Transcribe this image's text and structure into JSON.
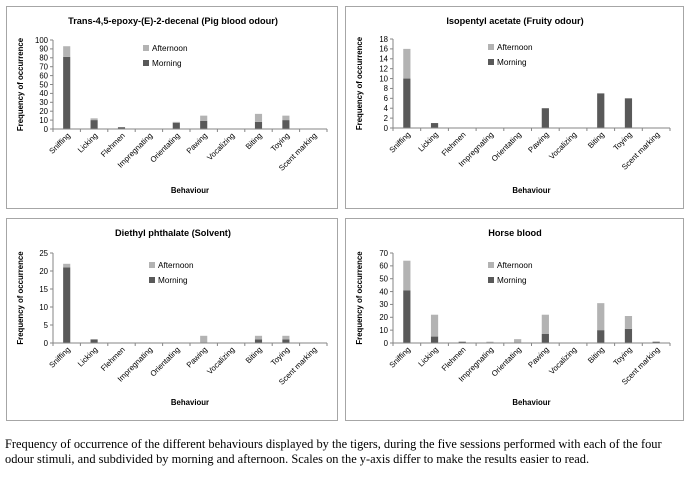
{
  "caption": "Frequency of occurrence of the different behaviours displayed by the tigers, during the five sessions performed with each of the four odour stimuli, and subdivided by morning and afternoon. Scales on the y-axis differ to make the results easier to read.",
  "colors": {
    "morning": "#595959",
    "afternoon": "#b3b3b3",
    "axis": "#868686",
    "border": "#a6a6a6",
    "text": "#000000"
  },
  "chart_data": [
    {
      "type": "bar",
      "stacked": true,
      "title": "Trans-4,5-epoxy-(E)-2-decenal (Pig blood odour)",
      "xlabel": "Behaviour",
      "ylabel": "Frequency of occurrence",
      "categories": [
        "Sniffing",
        "Licking",
        "Flehmen",
        "Impregnating",
        "Orientating",
        "Pawing",
        "Vocalizing",
        "Biting",
        "Toying",
        "Scent marking"
      ],
      "ylim": [
        0,
        100
      ],
      "yticks": [
        0,
        10,
        20,
        30,
        40,
        50,
        60,
        70,
        80,
        90,
        100
      ],
      "legend_position": "top-center",
      "series": [
        {
          "name": "Morning",
          "values": [
            81,
            10,
            2,
            0,
            7,
            9,
            0,
            8,
            10,
            0
          ]
        },
        {
          "name": "Afternoon",
          "values": [
            12,
            2,
            0,
            0,
            1,
            6,
            0,
            9,
            5,
            0
          ]
        }
      ]
    },
    {
      "type": "bar",
      "stacked": true,
      "title": "Isopentyl acetate (Fruity odour)",
      "xlabel": "Behaviour",
      "ylabel": "Frequency of occurrence",
      "categories": [
        "Sniffing",
        "Licking",
        "Flehmen",
        "Impregnating",
        "Orientating",
        "Pawing",
        "Vocalizing",
        "Biting",
        "Toying",
        "Scent marking"
      ],
      "ylim": [
        0,
        18
      ],
      "yticks": [
        0,
        2,
        4,
        6,
        8,
        10,
        12,
        14,
        16,
        18
      ],
      "legend_position": "top-center",
      "series": [
        {
          "name": "Morning",
          "values": [
            10,
            1,
            0,
            0,
            0,
            4,
            0,
            7,
            6,
            0
          ]
        },
        {
          "name": "Afternoon",
          "values": [
            6,
            0,
            0,
            0,
            0,
            0,
            0,
            0,
            0,
            0
          ]
        }
      ]
    },
    {
      "type": "bar",
      "stacked": true,
      "title": "Diethyl phthalate (Solvent)",
      "xlabel": "Behaviour",
      "ylabel": "Frequency of occurrence",
      "categories": [
        "Sniffing",
        "Licking",
        "Flehmen",
        "Impregnating",
        "Orientating",
        "Pawing",
        "Vocalizing",
        "Biting",
        "Toying",
        "Scent marking"
      ],
      "ylim": [
        0,
        25
      ],
      "yticks": [
        0,
        5,
        10,
        15,
        20,
        25
      ],
      "legend_position": "top-center",
      "series": [
        {
          "name": "Morning",
          "values": [
            21,
            1,
            0,
            0,
            0,
            0,
            0,
            1,
            1,
            0
          ]
        },
        {
          "name": "Afternoon",
          "values": [
            1,
            0,
            0,
            0,
            0,
            2,
            0,
            1,
            1,
            0
          ]
        }
      ]
    },
    {
      "type": "bar",
      "stacked": true,
      "title": "Horse blood",
      "xlabel": "Behaviour",
      "ylabel": "Frequency of occurrence",
      "categories": [
        "Sniffing",
        "Licking",
        "Flehmen",
        "Impregnating",
        "Orientating",
        "Pawing",
        "Vocalizing",
        "Biting",
        "Toying",
        "Scent marking"
      ],
      "ylim": [
        0,
        70
      ],
      "yticks": [
        0,
        10,
        20,
        30,
        40,
        50,
        60,
        70
      ],
      "legend_position": "top-center",
      "series": [
        {
          "name": "Morning",
          "values": [
            41,
            5,
            1,
            0,
            0,
            7,
            0,
            10,
            11,
            1
          ]
        },
        {
          "name": "Afternoon",
          "values": [
            23,
            17,
            0,
            1,
            3,
            15,
            0,
            21,
            10,
            0
          ]
        }
      ]
    }
  ]
}
